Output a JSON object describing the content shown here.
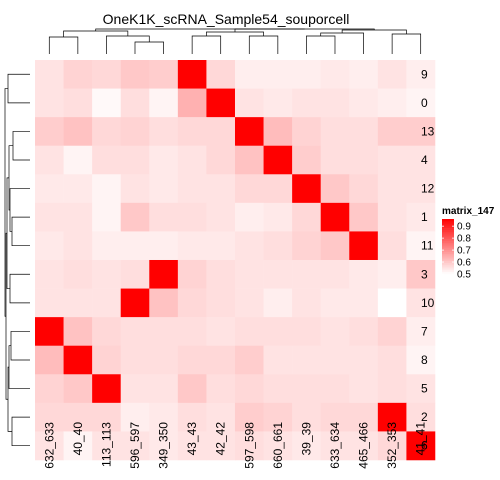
{
  "chart_data": {
    "type": "heatmap",
    "title": "OneK1K_scRNA_Sample54_souporcell",
    "columns": [
      "632_633",
      "40_40",
      "113_113",
      "596_597",
      "349_350",
      "43_43",
      "42_42",
      "597_598",
      "660_661",
      "39_39",
      "633_634",
      "465_466",
      "352_353",
      "41_41"
    ],
    "rows": [
      "9",
      "0",
      "13",
      "4",
      "12",
      "1",
      "11",
      "3",
      "10",
      "7",
      "8",
      "5",
      "2",
      "6"
    ],
    "values": [
      [
        0.55,
        0.58,
        0.57,
        0.6,
        0.59,
        0.96,
        0.57,
        0.53,
        0.53,
        0.53,
        0.54,
        0.53,
        0.55,
        0.53
      ],
      [
        0.55,
        0.56,
        0.51,
        0.56,
        0.52,
        0.64,
        0.96,
        0.55,
        0.54,
        0.55,
        0.55,
        0.54,
        0.53,
        0.52
      ],
      [
        0.59,
        0.61,
        0.57,
        0.58,
        0.56,
        0.57,
        0.57,
        0.96,
        0.62,
        0.58,
        0.56,
        0.56,
        0.59,
        0.59
      ],
      [
        0.55,
        0.52,
        0.56,
        0.56,
        0.54,
        0.55,
        0.57,
        0.61,
        0.96,
        0.59,
        0.56,
        0.56,
        0.55,
        0.55
      ],
      [
        0.54,
        0.54,
        0.52,
        0.55,
        0.54,
        0.55,
        0.55,
        0.57,
        0.57,
        0.96,
        0.6,
        0.57,
        0.55,
        0.55
      ],
      [
        0.55,
        0.55,
        0.52,
        0.6,
        0.56,
        0.56,
        0.55,
        0.53,
        0.54,
        0.57,
        0.96,
        0.6,
        0.55,
        0.54
      ],
      [
        0.54,
        0.55,
        0.53,
        0.53,
        0.53,
        0.54,
        0.54,
        0.55,
        0.56,
        0.58,
        0.6,
        0.96,
        0.56,
        0.52
      ],
      [
        0.55,
        0.56,
        0.55,
        0.56,
        0.96,
        0.58,
        0.56,
        0.55,
        0.55,
        0.55,
        0.55,
        0.54,
        0.53,
        0.6
      ],
      [
        0.55,
        0.55,
        0.55,
        0.96,
        0.61,
        0.57,
        0.56,
        0.55,
        0.53,
        0.55,
        0.54,
        0.54,
        0.5,
        0.55
      ],
      [
        0.96,
        0.61,
        0.57,
        0.56,
        0.56,
        0.56,
        0.55,
        0.56,
        0.56,
        0.56,
        0.55,
        0.56,
        0.58,
        0.53
      ],
      [
        0.62,
        0.96,
        0.58,
        0.56,
        0.56,
        0.57,
        0.57,
        0.59,
        0.55,
        0.55,
        0.55,
        0.55,
        0.56,
        0.52
      ],
      [
        0.58,
        0.6,
        0.96,
        0.55,
        0.55,
        0.6,
        0.56,
        0.57,
        0.56,
        0.56,
        0.56,
        0.55,
        0.56,
        0.55
      ],
      [
        0.57,
        0.57,
        0.57,
        0.53,
        0.54,
        0.56,
        0.55,
        0.59,
        0.58,
        0.56,
        0.57,
        0.57,
        0.96,
        0.56
      ],
      [
        0.55,
        0.52,
        0.55,
        0.55,
        0.54,
        0.55,
        0.55,
        0.56,
        0.55,
        0.54,
        0.55,
        0.55,
        0.57,
        0.96
      ]
    ],
    "legend": {
      "title": "matrix_147",
      "ticks": [
        0.9,
        0.8,
        0.7,
        0.6,
        0.5
      ],
      "colors": {
        "low": "#ffffff",
        "high": "#ff0000"
      },
      "range": [
        0.5,
        0.96
      ]
    }
  }
}
